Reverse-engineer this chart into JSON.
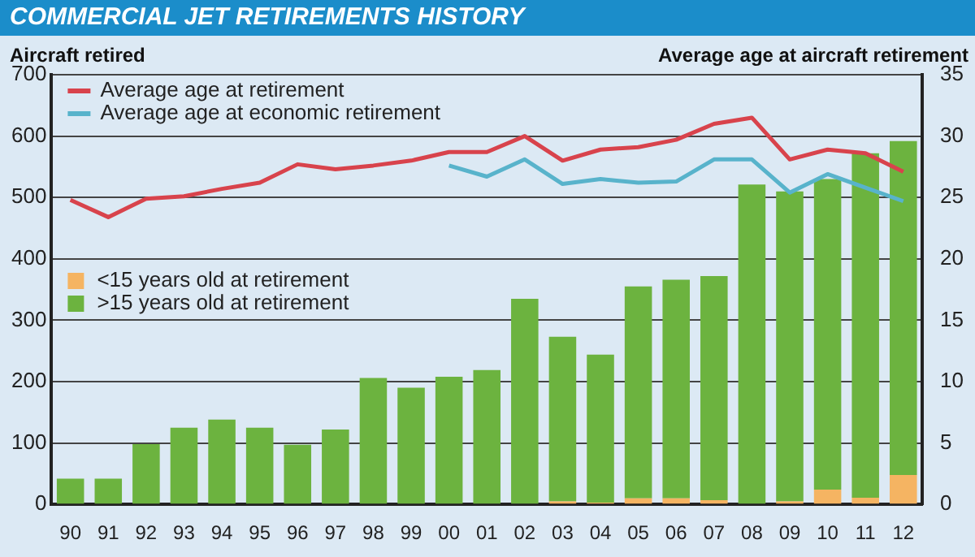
{
  "chart_data": {
    "type": "bar",
    "title": "COMMERCIAL JET RETIREMENTS HISTORY",
    "ylabel": "Aircraft retired",
    "y2label": "Average age at aircraft retirement",
    "categories": [
      "90",
      "91",
      "92",
      "93",
      "94",
      "95",
      "96",
      "97",
      "98",
      "99",
      "00",
      "01",
      "02",
      "03",
      "04",
      "05",
      "06",
      "07",
      "08",
      "09",
      "10",
      "11",
      "12"
    ],
    "stacked": true,
    "grid": "y",
    "legend": "top left",
    "marker": "none",
    "line_style": "solid",
    "ylim": [
      0,
      700
    ],
    "yticks": [
      0,
      100,
      200,
      300,
      400,
      500,
      600,
      700
    ],
    "y2lim": [
      0,
      35
    ],
    "y2ticks": [
      0,
      5,
      10,
      15,
      20,
      25,
      30,
      35
    ],
    "series": [
      {
        "name": "<15 years old at retirement",
        "color": "#f5b462",
        "values": [
          0,
          0,
          0,
          0,
          0,
          0,
          0,
          0,
          0,
          0,
          0,
          0,
          0,
          5,
          3,
          10,
          10,
          7,
          0,
          5,
          24,
          11,
          48
        ]
      },
      {
        "name": ">15 years old at retirement",
        "color": "#6cb33f",
        "values": [
          42,
          42,
          98,
          125,
          138,
          125,
          97,
          122,
          206,
          190,
          208,
          219,
          335,
          268,
          241,
          345,
          356,
          365,
          521,
          505,
          506,
          561,
          544
        ]
      },
      {
        "name": "Average age at retirement",
        "type": "line",
        "axis": "y2",
        "color": "#d8434c",
        "values": [
          24.8,
          23.4,
          24.9,
          25.1,
          25.7,
          26.2,
          27.7,
          27.3,
          27.6,
          28.0,
          28.7,
          28.7,
          30.0,
          28.0,
          28.9,
          29.1,
          29.7,
          31.0,
          31.5,
          28.1,
          28.9,
          28.6,
          27.1
        ]
      },
      {
        "name": "Average age at economic retirement",
        "type": "line",
        "axis": "y2",
        "color": "#58b3cb",
        "values": [
          null,
          null,
          null,
          null,
          null,
          null,
          null,
          null,
          null,
          null,
          27.6,
          26.7,
          28.1,
          26.1,
          26.5,
          26.2,
          26.3,
          28.1,
          28.1,
          25.4,
          26.9,
          25.8,
          24.7
        ]
      }
    ]
  }
}
